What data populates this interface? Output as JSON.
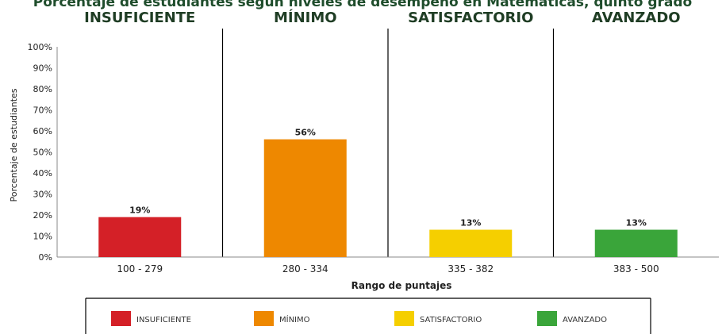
{
  "chart_data": {
    "type": "bar",
    "title": "Porcentaje de estudiantes según niveles de desempeño en Matemáticas, quinto grado",
    "levels": [
      "INSUFICIENTE",
      "MÍNIMO",
      "SATISFACTORIO",
      "AVANZADO"
    ],
    "categories": [
      "100 - 279",
      "280 - 334",
      "335 - 382",
      "383 - 500"
    ],
    "values": [
      19,
      56,
      13,
      13
    ],
    "value_labels": [
      "19%",
      "56%",
      "13%",
      "13%"
    ],
    "colors": [
      "#d42027",
      "#ee8800",
      "#f5cf00",
      "#3aa53a"
    ],
    "xlabel": "Rango de puntajes",
    "ylabel": "Porcentaje de estudiantes",
    "ylim": [
      0,
      100
    ],
    "yticks": [
      "0%",
      "10%",
      "20%",
      "30%",
      "40%",
      "50%",
      "60%",
      "70%",
      "80%",
      "90%",
      "100%"
    ],
    "grid": false,
    "legend_position": "bottom",
    "legend": [
      "INSUFICIENTE",
      "MÍNIMO",
      "SATISFACTORIO",
      "AVANZADO"
    ]
  }
}
